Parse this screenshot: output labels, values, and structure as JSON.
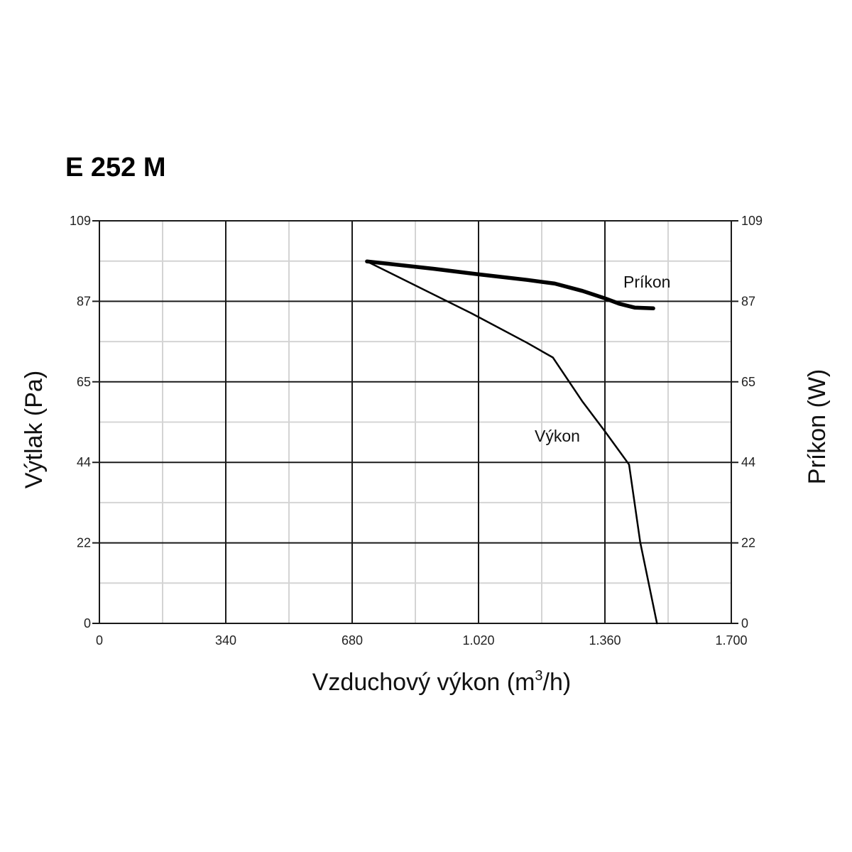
{
  "chart_data": {
    "type": "line",
    "title": "E 252 M",
    "xlabel": "Vzduchový výkon (m",
    "xlabel_sup": "3",
    "xlabel_tail": "/h)",
    "ylabel_left": "Výtlak (Pa)",
    "ylabel_right": "Príkon (W)",
    "x_ticks": [
      "0",
      "340",
      "680",
      "1.020",
      "1.360",
      "1.700"
    ],
    "y_ticks_left": [
      "0",
      "22",
      "44",
      "65",
      "87",
      "109"
    ],
    "y_ticks_right": [
      "0",
      "22",
      "44",
      "65",
      "87",
      "109"
    ],
    "xlim": [
      0,
      1700
    ],
    "ylim": [
      0,
      109
    ],
    "grid": true,
    "series": [
      {
        "name": "Výkon",
        "axis": "left",
        "x": [
          720,
          1000,
          1150,
          1220,
          1300,
          1360,
          1425,
          1455,
          1500
        ],
        "y": [
          98,
          84,
          76,
          72,
          60,
          52,
          43,
          22,
          0
        ]
      },
      {
        "name": "Príkon",
        "axis": "right",
        "x": [
          720,
          900,
          1020,
          1150,
          1225,
          1300,
          1360,
          1400,
          1440,
          1490
        ],
        "y": [
          98,
          96,
          94.5,
          93,
          92,
          90,
          88,
          86.5,
          85.5,
          85.3
        ]
      }
    ]
  }
}
